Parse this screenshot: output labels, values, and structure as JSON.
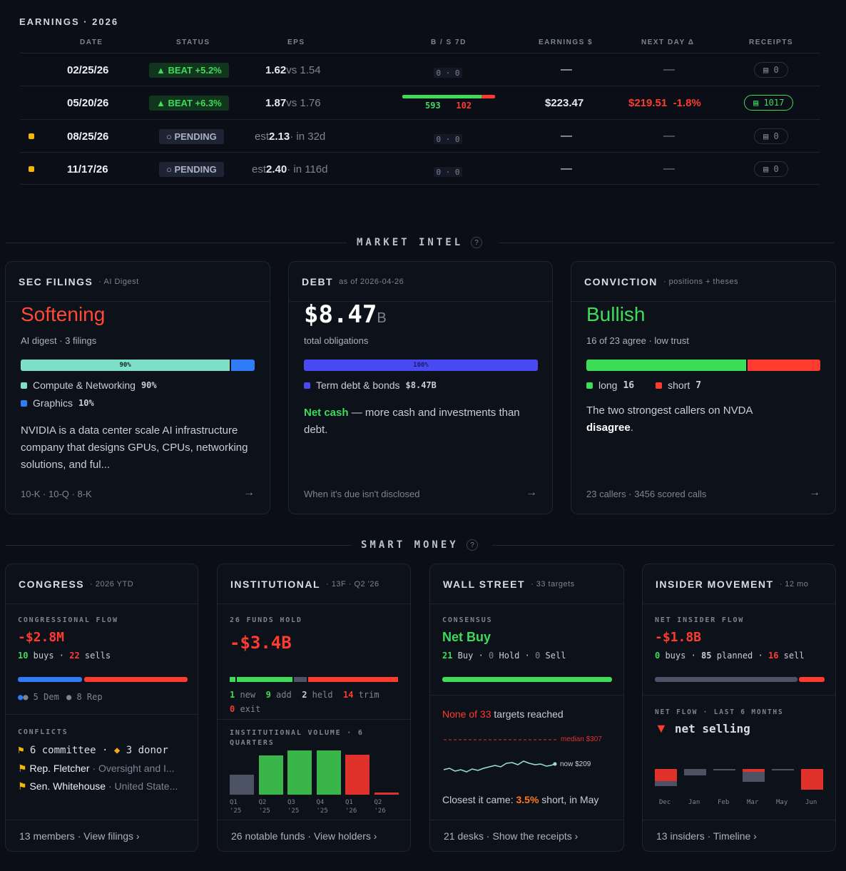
{
  "earnings": {
    "title": "EARNINGS · 2026",
    "headers": {
      "date": "DATE",
      "status": "STATUS",
      "eps": "EPS",
      "bs": "B / S 7D",
      "earnings": "EARNINGS $",
      "nextday": "NEXT DAY Δ",
      "receipts": "RECEIPTS"
    },
    "rows": [
      {
        "date": "02/25/26",
        "status": "▲ BEAT +5.2%",
        "eps": "1.62",
        "eps_sub": " vs 1.54",
        "bs": "0 · 0",
        "earnings": "—",
        "nextday": "—",
        "receipts": "▤ 0"
      },
      {
        "date": "05/20/26",
        "status": "▲ BEAT +6.3%",
        "eps": "1.87",
        "eps_sub": " vs 1.76",
        "bs_buy": "593",
        "bs_sell": "102",
        "buy_frac": 0.85,
        "earnings": "$223.47",
        "nextday_price": "$219.51",
        "nextday_pct": "-1.8%",
        "receipts": "▤ 1017"
      },
      {
        "date": "08/25/26",
        "status": "○ PENDING",
        "eps_pre": "est ",
        "eps": "2.13",
        "eps_sub": " · in 32d",
        "bs": "0 · 0",
        "earnings": "—",
        "nextday": "—",
        "receipts": "▤ 0"
      },
      {
        "date": "11/17/26",
        "status": "○ PENDING",
        "eps_pre": "est ",
        "eps": "2.40",
        "eps_sub": " · in 116d",
        "bs": "0 · 0",
        "earnings": "—",
        "nextday": "—",
        "receipts": "▤ 0"
      }
    ],
    "pending_color": "#f5b800"
  },
  "market_intel": {
    "title": "MARKET INTEL",
    "help": "?"
  },
  "sec": {
    "title": "SEC FILINGS",
    "sub": "· AI Digest",
    "headline": "Softening",
    "meta": "AI digest · 3 filings",
    "bar_label": "90%",
    "split": 0.9,
    "legend": [
      {
        "label": "Compute & Networking",
        "value": "90%",
        "color": "#7fe0c8"
      },
      {
        "label": "Graphics",
        "value": "10%",
        "color": "#2f7cf6"
      }
    ],
    "desc": "NVIDIA is a data center scale AI infrastructure company that designs GPUs, CPUs, networking solutions, and ful...",
    "foot": "10-K · 10-Q · 8-K",
    "arrow": "→"
  },
  "debt": {
    "title": "DEBT",
    "sub": "as of 2026-04-26",
    "value": "$8.47",
    "unit": "B",
    "meta": "total obligations",
    "bar_label": "100%",
    "legend": [
      {
        "label": "Term debt & bonds",
        "value": "$8.47B",
        "color": "#4a4af5"
      }
    ],
    "net_label": "Net cash",
    "net_text": " — more cash and investments than debt.",
    "foot": "When it's due isn't disclosed",
    "arrow": "→"
  },
  "conviction": {
    "title": "CONVICTION",
    "sub": "· positions + theses",
    "headline": "Bullish",
    "meta": "16 of 23 agree · low trust",
    "long_frac": 0.69,
    "long_label": "long",
    "long_value": "16",
    "short_label": "short",
    "short_value": "7",
    "desc_pre": "The two strongest callers on NVDA ",
    "desc_bold": "disagree",
    ".": ".",
    "foot": "23 callers · 3456 scored calls",
    "arrow": "→"
  },
  "smart_money": {
    "title": "SMART MONEY",
    "help": "?"
  },
  "congress": {
    "title": "CONGRESS",
    "sub": "· 2026 YTD",
    "flow_label": "CONGRESSIONAL FLOW",
    "flow_value": "-$2.8M",
    "buys": "10",
    "buys_label": " buys · ",
    "sells": "22",
    "sells_label": " sells",
    "dem_frac": 0.38,
    "dem": "● 5 Dem",
    "rep": "● 8 Rep",
    "conflicts_label": "CONFLICTS",
    "committee": "6 committee",
    "donor": "3 donor",
    "people": [
      {
        "name": "Rep. Fletcher",
        "detail": " · Oversight and I..."
      },
      {
        "name": "Sen. Whitehouse",
        "detail": " · United State..."
      }
    ],
    "foot": "13 members · View filings ›"
  },
  "institutional": {
    "title": "INSTITUTIONAL",
    "sub": "· 13F · Q2 '26",
    "funds_label": "26 FUNDS HOLD",
    "value": "-$3.4B",
    "stats": [
      {
        "n": "1",
        "t": " new  "
      },
      {
        "n": "9",
        "t": " add  "
      },
      {
        "n": "2",
        "t": " held  "
      },
      {
        "n": "14",
        "t": " trim"
      }
    ],
    "exit_n": "0",
    "exit_t": " exit",
    "vol_label": "INSTITUTIONAL VOLUME · 6 QUARTERS",
    "quarters": [
      {
        "q": "Q1",
        "y": "'25",
        "v": 0.45,
        "c": "#4b5263"
      },
      {
        "q": "Q2",
        "y": "'25",
        "v": 0.88,
        "c": "#3ab54a"
      },
      {
        "q": "Q3",
        "y": "'25",
        "v": 1.0,
        "c": "#3ab54a"
      },
      {
        "q": "Q4",
        "y": "'25",
        "v": 1.0,
        "c": "#3ab54a"
      },
      {
        "q": "Q1",
        "y": "'26",
        "v": 0.9,
        "c": "#e0312b"
      },
      {
        "q": "Q2",
        "y": "'26",
        "v": 0.05,
        "c": "#e0312b"
      }
    ],
    "foot": "26 notable funds · View holders ›"
  },
  "wallstreet": {
    "title": "WALL STREET",
    "sub": "· 33 targets",
    "cons_label": "CONSENSUS",
    "value": "Net Buy",
    "buy": "21",
    "hold": "0",
    "sell": "0",
    "reached_red": "None of 33",
    "reached_rest": " targets reached",
    "median": "median $307",
    "now": "now $209",
    "closest_pre": "Closest it came: ",
    "closest_pct": "3.5%",
    "closest_post": " short, in May",
    "foot": "21 desks · Show the receipts ›"
  },
  "insider": {
    "title": "INSIDER MOVEMENT",
    "sub": "· 12 mo",
    "flow_label": "NET INSIDER FLOW",
    "value": "-$1.8B",
    "buys": "0",
    "planned": "85",
    "sells": "16",
    "months_label": "NET FLOW · LAST 6 MONTHS",
    "trend": "net selling",
    "months": [
      {
        "m": "Dec",
        "red": 0.5,
        "grey": 0.2
      },
      {
        "m": "Jan",
        "red": 0,
        "grey": 0.25
      },
      {
        "m": "Feb",
        "red": 0,
        "grey": 0.05
      },
      {
        "m": "Mar",
        "red": 0.12,
        "grey": 0.4
      },
      {
        "m": "May",
        "red": 0,
        "grey": 0.05
      },
      {
        "m": "Jun",
        "red": 0.85,
        "grey": 0
      }
    ],
    "foot": "13 insiders · Timeline ›"
  }
}
